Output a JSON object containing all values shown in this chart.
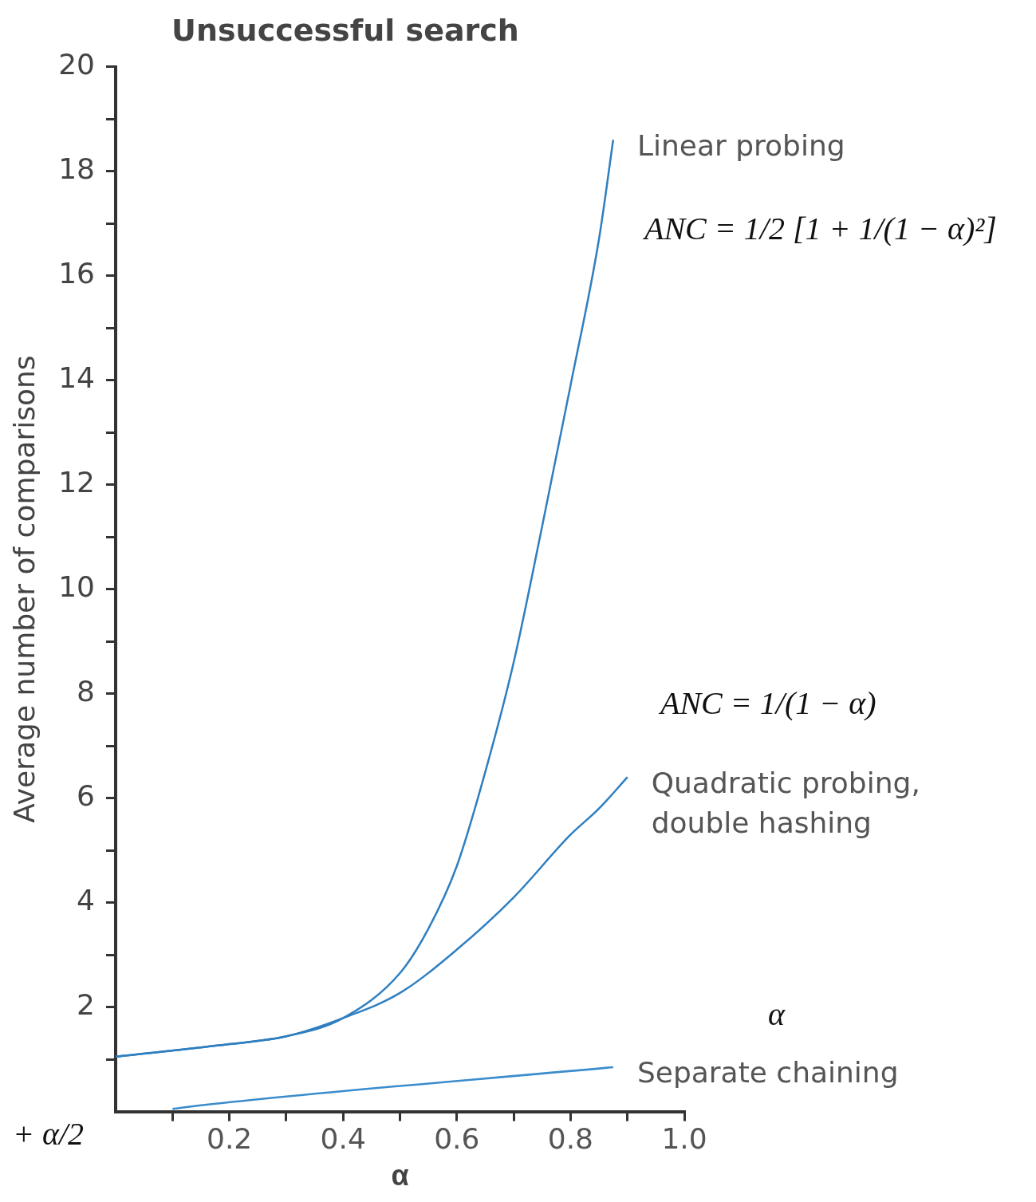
{
  "chart_data": {
    "type": "line",
    "title": "Unsuccessful search",
    "xlabel": "α",
    "ylabel": "Average number of comparisons",
    "xlim": [
      0,
      1
    ],
    "ylim": [
      0,
      20
    ],
    "xticks": [
      {
        "value": 0.1,
        "label": null
      },
      0.2,
      {
        "value": 0.3,
        "label": null
      },
      0.4,
      {
        "value": 0.5,
        "label": null
      },
      0.6,
      {
        "value": 0.7,
        "label": null
      },
      0.8,
      {
        "value": 0.9,
        "label": null
      },
      {
        "value": 1,
        "label": "1.0"
      }
    ],
    "yticks": [
      {
        "value": 1,
        "label": null
      },
      2,
      {
        "value": 3,
        "label": null
      },
      4,
      {
        "value": 5,
        "label": null
      },
      6,
      {
        "value": 7,
        "label": null
      },
      8,
      {
        "value": 9,
        "label": null
      },
      10,
      {
        "value": 11,
        "label": null
      },
      12,
      {
        "value": 13,
        "label": null
      },
      14,
      {
        "value": 15,
        "label": null
      },
      16,
      {
        "value": 17,
        "label": null
      },
      18,
      {
        "value": 19,
        "label": null
      },
      20
    ],
    "grid": false,
    "legend": false,
    "marker": "none",
    "line_style": "solid",
    "series": [
      {
        "name": "Linear probing",
        "color": "#2f7fc0",
        "x": [
          0,
          0.2,
          0.3,
          0.4,
          0.5,
          0.55,
          0.6,
          0.65,
          0.7,
          0.75,
          0.8,
          0.85,
          0.875
        ],
        "values": [
          1.05,
          1.29,
          1.44,
          1.79,
          2.65,
          3.5,
          4.7,
          6.5,
          8.6,
          11.2,
          13.9,
          16.7,
          18.6
        ]
      },
      {
        "name": "Quadratic probing,\ndouble hashing",
        "color": "#2f7fc0",
        "x": [
          0,
          0.2,
          0.3,
          0.4,
          0.5,
          0.6,
          0.7,
          0.8,
          0.85,
          0.9
        ],
        "values": [
          1.05,
          1.29,
          1.44,
          1.79,
          2.27,
          3.1,
          4.1,
          5.3,
          5.8,
          6.4
        ]
      },
      {
        "name": "Separate chaining",
        "color": "#3a8ccc",
        "x": [
          0.1,
          0.15,
          0.875
        ],
        "values": [
          0.05,
          0.12,
          0.85
        ]
      }
    ],
    "annotations": [
      "ANC = 1/2 [1 + 1/(1 − α)²]",
      "ANC = 1/(1 − α)",
      "α",
      "+ α/2"
    ]
  }
}
